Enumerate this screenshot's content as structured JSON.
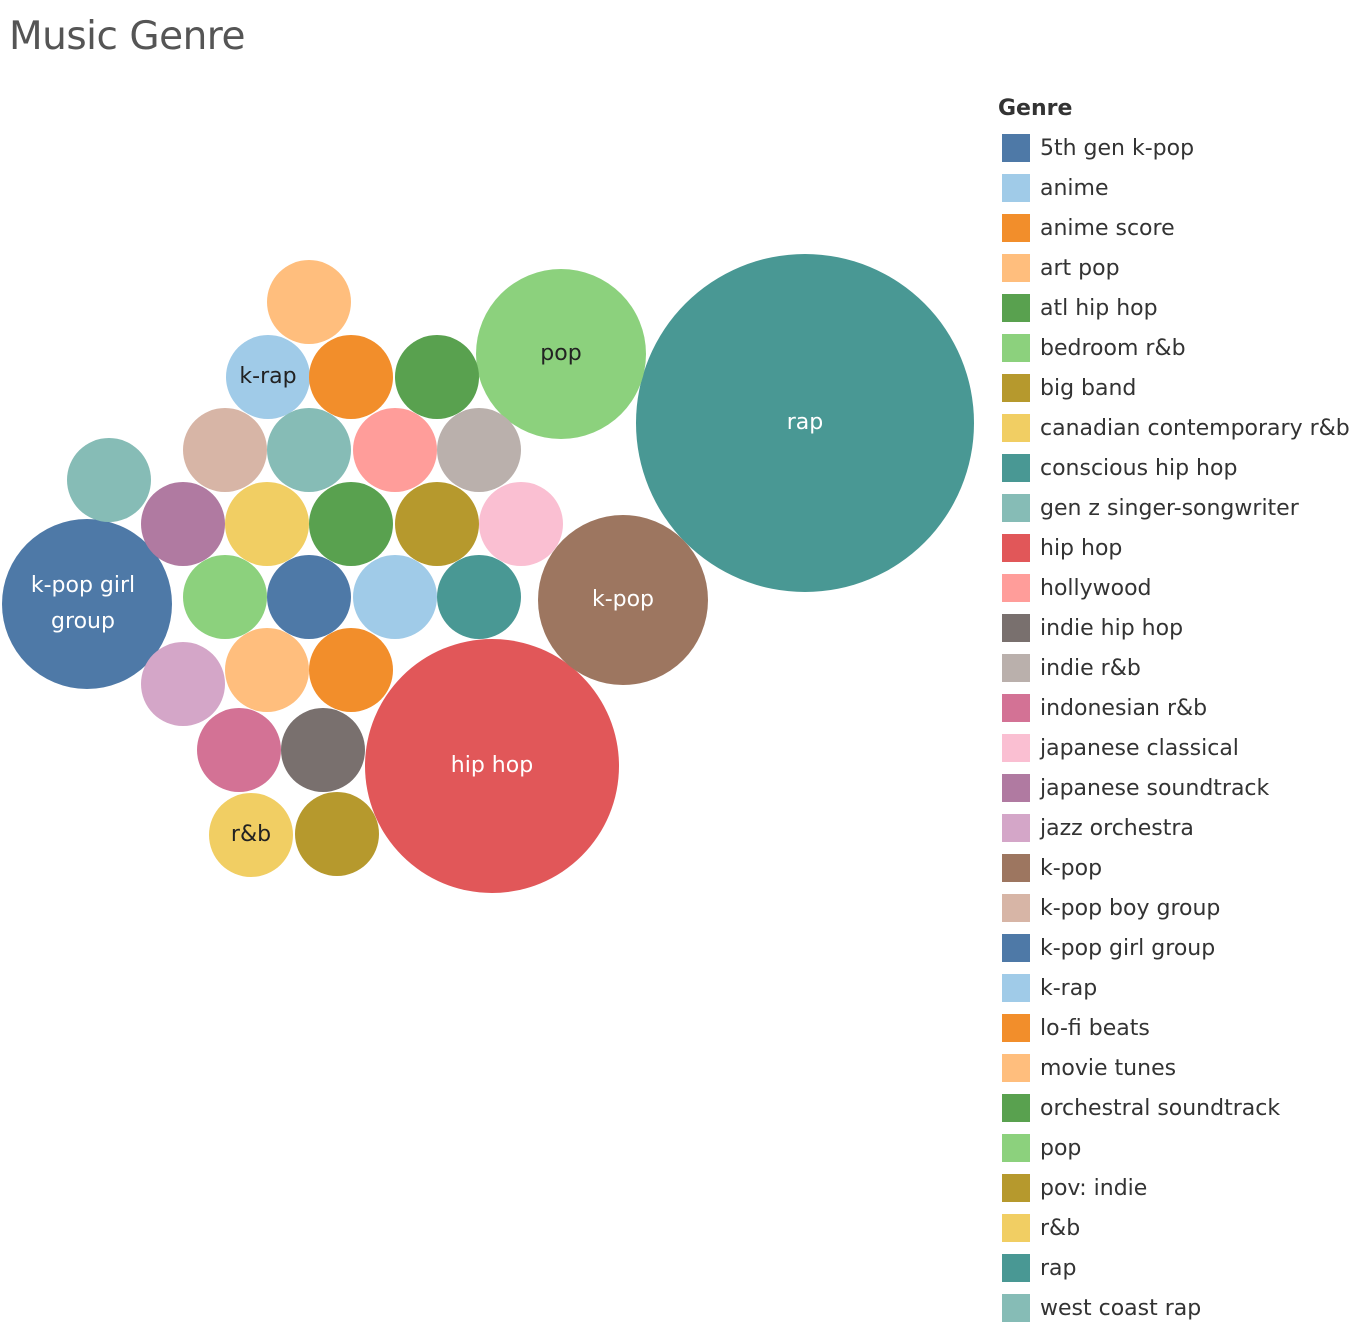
{
  "title": "Music Genre",
  "chart_data": {
    "type": "bubble",
    "title": "Music Genre",
    "legend": {
      "title": "Genre",
      "placement": "right",
      "items": [
        {
          "label": "5th gen k-pop",
          "color": "#4e79a7"
        },
        {
          "label": "anime",
          "color": "#a0cbe8"
        },
        {
          "label": "anime score",
          "color": "#f28e2b"
        },
        {
          "label": "art pop",
          "color": "#ffbe7d"
        },
        {
          "label": "atl hip hop",
          "color": "#59a14f"
        },
        {
          "label": "bedroom r&b",
          "color": "#8cd17d"
        },
        {
          "label": "big band",
          "color": "#b6992d"
        },
        {
          "label": "canadian contemporary r&b",
          "color": "#f1ce63"
        },
        {
          "label": "conscious hip hop",
          "color": "#499894"
        },
        {
          "label": "gen z singer-songwriter",
          "color": "#86bcb6"
        },
        {
          "label": "hip hop",
          "color": "#e15759"
        },
        {
          "label": "hollywood",
          "color": "#ff9d9a"
        },
        {
          "label": "indie hip hop",
          "color": "#79706e"
        },
        {
          "label": "indie r&b",
          "color": "#bab0ac"
        },
        {
          "label": "indonesian r&b",
          "color": "#d37295"
        },
        {
          "label": "japanese classical",
          "color": "#fabfd2"
        },
        {
          "label": "japanese soundtrack",
          "color": "#b07aa1"
        },
        {
          "label": "jazz orchestra",
          "color": "#d4a6c8"
        },
        {
          "label": "k-pop",
          "color": "#9d7660"
        },
        {
          "label": "k-pop boy group",
          "color": "#d7b5a6"
        },
        {
          "label": "k-pop girl group",
          "color": "#4e79a7"
        },
        {
          "label": "k-rap",
          "color": "#a0cbe8"
        },
        {
          "label": "lo-fi beats",
          "color": "#f28e2b"
        },
        {
          "label": "movie tunes",
          "color": "#ffbe7d"
        },
        {
          "label": "orchestral soundtrack",
          "color": "#59a14f"
        },
        {
          "label": "pop",
          "color": "#8cd17d"
        },
        {
          "label": "pov: indie",
          "color": "#b6992d"
        },
        {
          "label": "r&b",
          "color": "#f1ce63"
        },
        {
          "label": "rap",
          "color": "#499894"
        },
        {
          "label": "west coast rap",
          "color": "#86bcb6"
        }
      ]
    },
    "series": [
      {
        "genre": "rap",
        "label": "rap",
        "value": 16,
        "color": "#499894",
        "label_color": "#ffffff"
      },
      {
        "genre": "hip hop",
        "label": "hip hop",
        "value": 9,
        "color": "#e15759",
        "label_color": "#ffffff"
      },
      {
        "genre": "pop",
        "label": "pop",
        "value": 4,
        "color": "#8cd17d",
        "label_color": "#222222"
      },
      {
        "genre": "k-pop",
        "label": "k-pop",
        "value": 4,
        "color": "#9d7660",
        "label_color": "#ffffff"
      },
      {
        "genre": "k-pop girl group",
        "label": "k-pop girl group",
        "value": 4,
        "color": "#4e79a7",
        "label_color": "#ffffff"
      },
      {
        "genre": "k-rap",
        "label": "k-rap",
        "value": 1,
        "color": "#a0cbe8",
        "label_color": "#222222"
      },
      {
        "genre": "r&b",
        "label": "r&b",
        "value": 1,
        "color": "#f1ce63",
        "label_color": "#222222"
      },
      {
        "genre": "art pop",
        "label": "",
        "value": 1,
        "color": "#ffbe7d"
      },
      {
        "genre": "lo-fi beats",
        "label": "",
        "value": 1,
        "color": "#f28e2b"
      },
      {
        "genre": "atl hip hop",
        "label": "",
        "value": 1,
        "color": "#59a14f"
      },
      {
        "genre": "k-pop boy group",
        "label": "",
        "value": 1,
        "color": "#d7b5a6"
      },
      {
        "genre": "west coast rap",
        "label": "",
        "value": 1,
        "color": "#86bcb6"
      },
      {
        "genre": "hollywood",
        "label": "",
        "value": 1,
        "color": "#ff9d9a"
      },
      {
        "genre": "indie r&b",
        "label": "",
        "value": 1,
        "color": "#bab0ac"
      },
      {
        "genre": "gen z singer-songwriter",
        "label": "",
        "value": 1,
        "color": "#86bcb6"
      },
      {
        "genre": "japanese soundtrack",
        "label": "",
        "value": 1,
        "color": "#b07aa1"
      },
      {
        "genre": "canadian contemporary r&b",
        "label": "",
        "value": 1,
        "color": "#f1ce63"
      },
      {
        "genre": "orchestral soundtrack",
        "label": "",
        "value": 1,
        "color": "#59a14f"
      },
      {
        "genre": "pov: indie",
        "label": "",
        "value": 1,
        "color": "#b6992d"
      },
      {
        "genre": "japanese classical",
        "label": "",
        "value": 1,
        "color": "#fabfd2"
      },
      {
        "genre": "bedroom r&b",
        "label": "",
        "value": 1,
        "color": "#8cd17d"
      },
      {
        "genre": "5th gen k-pop",
        "label": "",
        "value": 1,
        "color": "#4e79a7"
      },
      {
        "genre": "anime",
        "label": "",
        "value": 1,
        "color": "#a0cbe8"
      },
      {
        "genre": "conscious hip hop",
        "label": "",
        "value": 1,
        "color": "#499894"
      },
      {
        "genre": "jazz orchestra",
        "label": "",
        "value": 1,
        "color": "#d4a6c8"
      },
      {
        "genre": "movie tunes",
        "label": "",
        "value": 1,
        "color": "#ffbe7d"
      },
      {
        "genre": "anime score",
        "label": "",
        "value": 1,
        "color": "#f28e2b"
      },
      {
        "genre": "indonesian r&b",
        "label": "",
        "value": 1,
        "color": "#d37295"
      },
      {
        "genre": "indie hip hop",
        "label": "",
        "value": 1,
        "color": "#79706e"
      },
      {
        "genre": "big band",
        "label": "",
        "value": 1,
        "color": "#b6992d"
      }
    ]
  }
}
